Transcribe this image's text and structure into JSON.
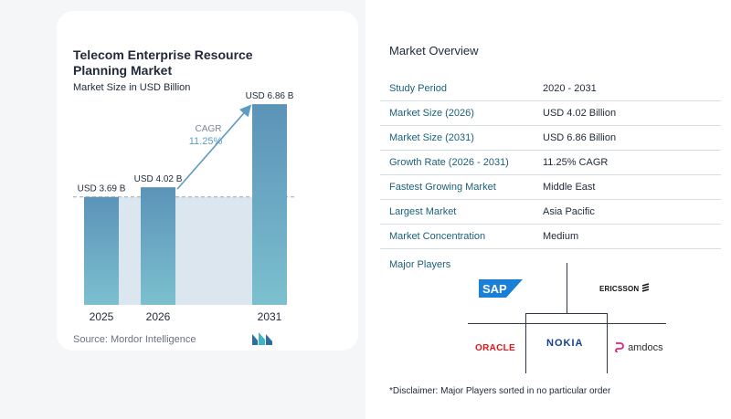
{
  "chart_data": {
    "type": "bar",
    "title": "Telecom Enterprise Resource Planning Market",
    "subtitle": "Market Size in USD Billion",
    "categories": [
      "2025",
      "2026",
      "2031"
    ],
    "values": [
      3.69,
      4.02,
      6.86
    ],
    "value_labels": [
      "USD 3.69 B",
      "USD 4.02 B",
      "USD 6.86 B"
    ],
    "ylim": [
      0,
      7.3
    ],
    "grid": false,
    "cagr_label": "CAGR",
    "cagr_value": "11.25%",
    "colors": {
      "bar_top": "#5b93b8",
      "bar_bottom": "#7cc0cf",
      "baseline_fill": "#dce6ef",
      "arrow": "#5b9bc4",
      "dashed": "#9aa5b1"
    }
  },
  "source": "Source: Mordor Intelligence",
  "overview": {
    "title": "Market Overview",
    "rows": [
      {
        "label": "Study Period",
        "value": "2020 - 2031"
      },
      {
        "label": "Market Size (2026)",
        "value": "USD 4.02 Billion"
      },
      {
        "label": "Market Size (2031)",
        "value": "USD 6.86 Billion"
      },
      {
        "label": "Growth Rate (2026 - 2031)",
        "value": "11.25% CAGR"
      },
      {
        "label": "Fastest Growing Market",
        "value": "Middle East"
      },
      {
        "label": "Largest Market",
        "value": "Asia Pacific"
      },
      {
        "label": "Market Concentration",
        "value": "Medium"
      }
    ]
  },
  "players": {
    "title": "Major Players",
    "logos": [
      "SAP",
      "ERICSSON",
      "ORACLE",
      "NOKIA",
      "amdocs"
    ]
  },
  "disclaimer": "*Disclaimer: Major Players sorted in no particular order"
}
